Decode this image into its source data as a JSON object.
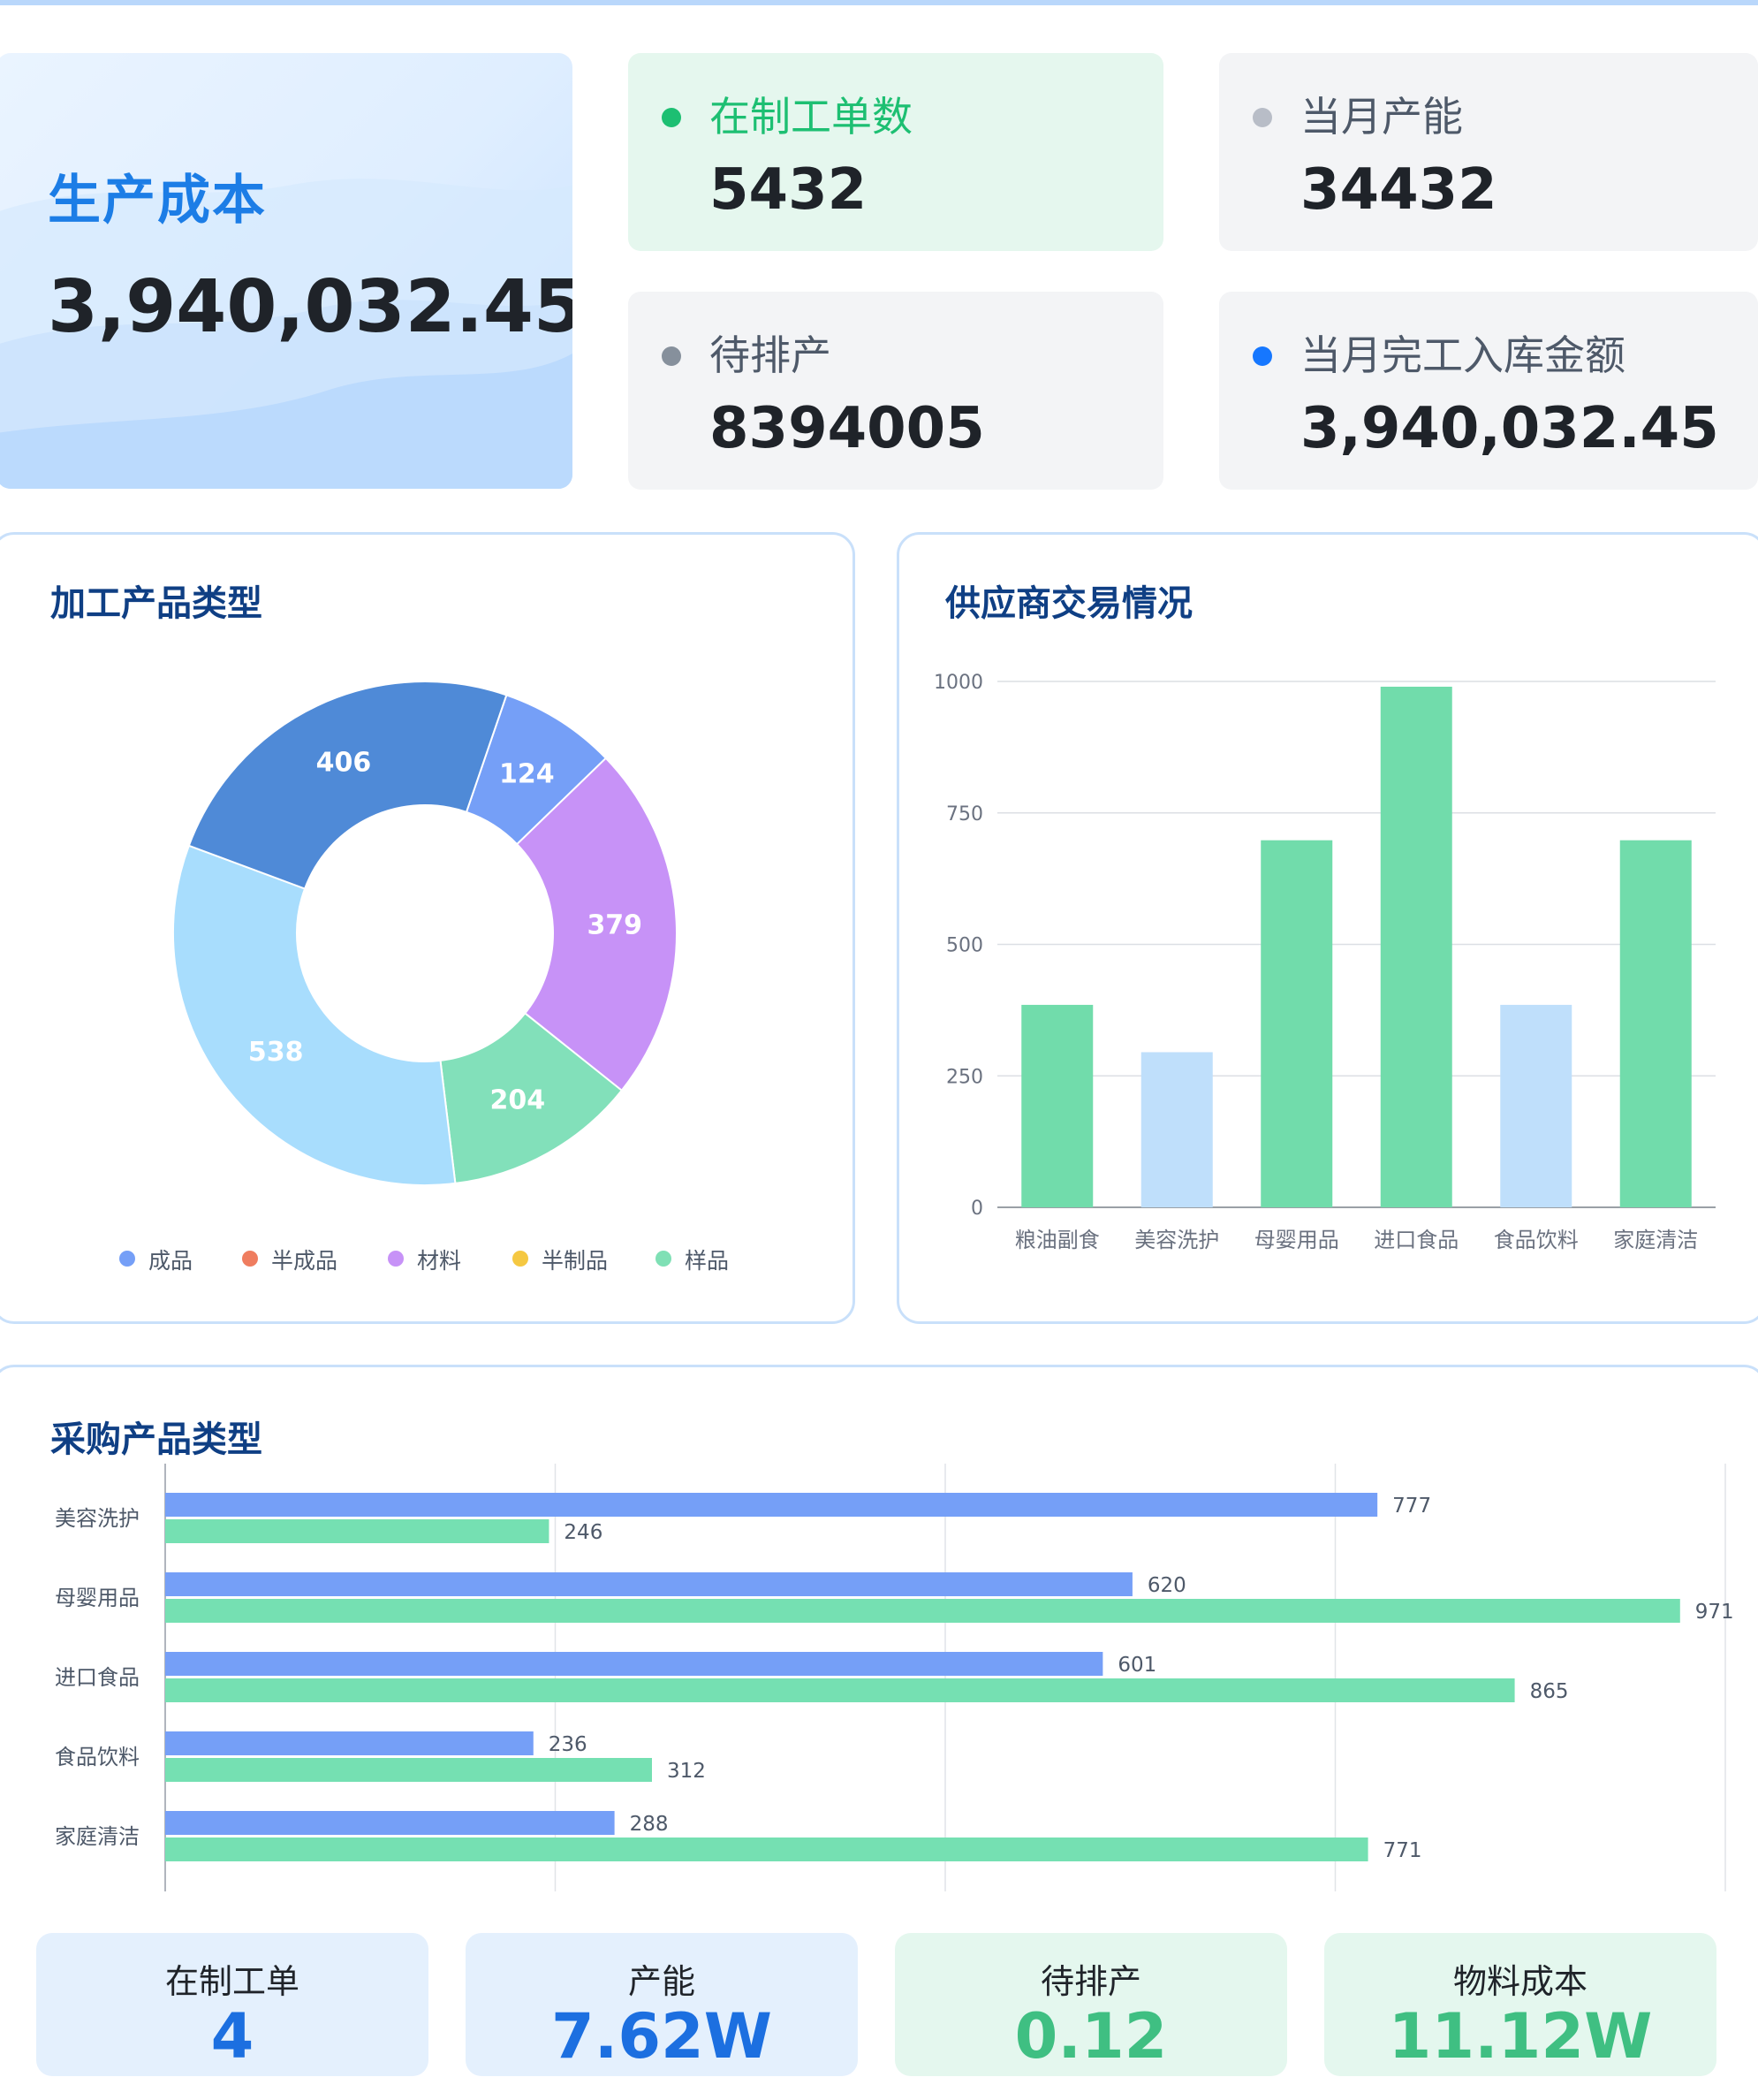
{
  "cost_card": {
    "title": "生产成本",
    "value": "3,940,032.45"
  },
  "kpis": [
    {
      "label": "在制工单数",
      "value": "5432",
      "dot_color": "#1dbf72"
    },
    {
      "label": "当月产能",
      "value": "34432",
      "dot_color": "#b8bdc7"
    },
    {
      "label": "待排产",
      "value": "8394005",
      "dot_color": "#86909c"
    },
    {
      "label": "当月完工入库金额",
      "value": "3,940,032.45",
      "dot_color": "#1677ff"
    }
  ],
  "panels": {
    "product_type": {
      "title": "加工产品类型"
    },
    "supplier": {
      "title": "供应商交易情况"
    },
    "purchase": {
      "title": "采购产品类型"
    }
  },
  "chart_data": [
    {
      "type": "pie",
      "title": "加工产品类型",
      "donut": true,
      "slices": [
        {
          "value": 124,
          "color": "#759ff7"
        },
        {
          "value": 379,
          "color": "#c792f7"
        },
        {
          "value": 204,
          "color": "#82e0ba"
        },
        {
          "value": 538,
          "color": "#a8ddfd"
        },
        {
          "value": 406,
          "color": "#4f8ad7"
        }
      ],
      "legend": [
        {
          "name": "成品",
          "color": "#759ff7"
        },
        {
          "name": "半成品",
          "color": "#ef7d5f"
        },
        {
          "name": "材料",
          "color": "#c792f7"
        },
        {
          "name": "半制品",
          "color": "#f5c842"
        },
        {
          "name": "样品",
          "color": "#7fe0b5"
        }
      ],
      "legend_position": "bottom"
    },
    {
      "type": "bar",
      "title": "供应商交易情况",
      "categories": [
        "粮油副食",
        "美容洗护",
        "母婴用品",
        "进口食品",
        "食品饮料",
        "家庭清洁"
      ],
      "values": [
        385,
        295,
        698,
        990,
        385,
        698
      ],
      "colors": [
        "#71dcab",
        "#bfdffb",
        "#71dcab",
        "#71dcab",
        "#bfdffb",
        "#71dcab"
      ],
      "yticks": [
        "0",
        "250",
        "500",
        "750",
        "1000"
      ],
      "ylim": [
        0,
        1000
      ],
      "grid": true
    },
    {
      "type": "bar",
      "orientation": "horizontal",
      "title": "采购产品类型",
      "categories": [
        "美容洗护",
        "母婴用品",
        "进口食品",
        "食品饮料",
        "家庭清洁"
      ],
      "series": [
        {
          "values": [
            777,
            620,
            601,
            236,
            288
          ],
          "color": "#759ff7"
        },
        {
          "values": [
            246,
            971,
            865,
            312,
            771
          ],
          "color": "#75e0b2"
        }
      ],
      "xlim": [
        0,
        1000
      ],
      "grid": true
    }
  ],
  "stats": [
    {
      "label": "在制工单",
      "value": "4",
      "bg": "#e4f0fd",
      "color": "#1c6fe0"
    },
    {
      "label": "产能",
      "value": "7.62W",
      "bg": "#e4f0fd",
      "color": "#1c6fe0"
    },
    {
      "label": "待排产",
      "value": "0.12",
      "bg": "#e4f7ee",
      "color": "#3fbf82"
    },
    {
      "label": "物料成本",
      "value": "11.12W",
      "bg": "#e4f7ee",
      "color": "#3fbf82"
    }
  ]
}
